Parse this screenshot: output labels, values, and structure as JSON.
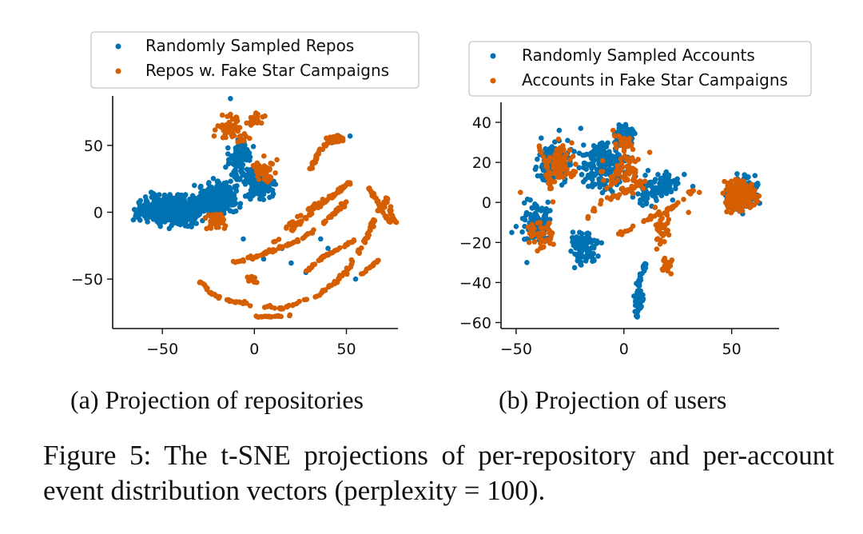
{
  "colors": {
    "random": "#0072b2",
    "fake": "#d55e00"
  },
  "figure_caption": "Figure 5: The t-SNE projections of per-repository and per-account event distribution vectors (perplexity = 100).",
  "chart_data": [
    {
      "type": "scatter",
      "title": "",
      "subcaption": "(a) Projection of repositories",
      "xlabel": "",
      "ylabel": "",
      "xlim": [
        -77,
        78
      ],
      "ylim": [
        -87,
        87
      ],
      "xticks": [
        -50,
        0,
        50
      ],
      "yticks": [
        -50,
        0,
        50
      ],
      "grid": false,
      "legend": {
        "placement": "top",
        "entries": [
          "Randomly Sampled Repos",
          "Repos w. Fake Star Campaigns"
        ]
      },
      "series": [
        {
          "name": "Randomly Sampled Repos",
          "color": "#0072b2",
          "clusters": [
            {
              "cx": -45,
              "cy": 2,
              "rx": 22,
              "ry": 15,
              "n": 460
            },
            {
              "cx": -20,
              "cy": 10,
              "rx": 15,
              "ry": 18,
              "n": 240
            },
            {
              "cx": -8,
              "cy": 40,
              "rx": 9,
              "ry": 24,
              "n": 110
            },
            {
              "cx": 3,
              "cy": 20,
              "rx": 12,
              "ry": 16,
              "n": 120
            },
            {
              "cx": -58,
              "cy": 0,
              "rx": 10,
              "ry": 8,
              "n": 70
            },
            {
              "cx": 45,
              "cy": 55,
              "rx": 5,
              "ry": 3,
              "n": 10
            }
          ],
          "points": [
            [
              -13,
              85
            ],
            [
              -63,
              2
            ],
            [
              42,
              52
            ],
            [
              52,
              57
            ],
            [
              20,
              -38
            ],
            [
              36,
              -20
            ],
            [
              28,
              -45
            ],
            [
              15,
              -27
            ],
            [
              55,
              -50
            ],
            [
              40,
              -27
            ],
            [
              -6,
              -20
            ],
            [
              5,
              -35
            ]
          ]
        },
        {
          "name": "Repos w. Fake Star Campaigns",
          "color": "#d55e00",
          "clusters": [
            {
              "cx": -12,
              "cy": 62,
              "rx": 13,
              "ry": 15,
              "n": 60
            },
            {
              "cx": 1,
              "cy": 70,
              "rx": 6,
              "ry": 6,
              "n": 25
            },
            {
              "cx": 43,
              "cy": 55,
              "rx": 6,
              "ry": 4,
              "n": 70
            },
            {
              "cx": -20,
              "cy": -7,
              "rx": 8,
              "ry": 10,
              "n": 50
            },
            {
              "cx": 5,
              "cy": 30,
              "rx": 10,
              "ry": 15,
              "n": 45
            },
            {
              "cx": -2,
              "cy": -50,
              "rx": 5,
              "ry": 4,
              "n": 12
            }
          ],
          "curves": [
            {
              "pts": [
                [
                  30,
                  32
                ],
                [
                  33,
                  38
                ],
                [
                  36,
                  47
                ],
                [
                  40,
                  52
                ],
                [
                  48,
                  56
                ]
              ],
              "n": 45,
              "jitter": 1.2
            },
            {
              "pts": [
                [
                  20,
                  -13
                ],
                [
                  36,
                  5
                ],
                [
                  52,
                  22
                ]
              ],
              "n": 60,
              "jitter": 1.3
            },
            {
              "pts": [
                [
                  -12,
                  -38
                ],
                [
                  6,
                  -31
                ],
                [
                  26,
                  -20
                ],
                [
                  42,
                  -3
                ],
                [
                  50,
                  8
                ]
              ],
              "n": 90,
              "jitter": 1.6
            },
            {
              "pts": [
                [
                  6,
                  -31
                ],
                [
                  16,
                  -15
                ],
                [
                  26,
                  0
                ],
                [
                  42,
                  12
                ],
                [
                  52,
                  23
                ]
              ],
              "n": 45,
              "jitter": 1.5
            },
            {
              "pts": [
                [
                  28,
                  -44
                ],
                [
                  36,
                  -35
                ],
                [
                  46,
                  -27
                ],
                [
                  54,
                  -21
                ]
              ],
              "n": 40,
              "jitter": 1.3
            },
            {
              "pts": [
                [
                  -30,
                  -52
                ],
                [
                  -20,
                  -64
                ],
                [
                  -5,
                  -68
                ],
                [
                  15,
                  -72
                ],
                [
                  35,
                  -62
                ],
                [
                  50,
                  -45
                ],
                [
                  60,
                  -22
                ],
                [
                  67,
                  0
                ],
                [
                  72,
                  10
                ],
                [
                  77,
                  -12
                ]
              ],
              "n": 170,
              "jitter": 1.6
            },
            {
              "pts": [
                [
                  62,
                  18
                ],
                [
                  66,
                  10
                ],
                [
                  70,
                  0
                ],
                [
                  74,
                  -8
                ]
              ],
              "n": 40,
              "jitter": 1.2
            },
            {
              "pts": [
                [
                  0,
                  -78
                ],
                [
                  10,
                  -78
                ],
                [
                  20,
                  -77
                ]
              ],
              "n": 20,
              "jitter": 0.8
            },
            {
              "pts": [
                [
                  57,
                  -48
                ],
                [
                  62,
                  -42
                ],
                [
                  68,
                  -35
                ]
              ],
              "n": 14,
              "jitter": 0.9
            }
          ]
        }
      ]
    },
    {
      "type": "scatter",
      "title": "",
      "subcaption": "(b) Projection of users",
      "xlabel": "",
      "ylabel": "",
      "xlim": [
        -57,
        72
      ],
      "ylim": [
        -63,
        50
      ],
      "xticks": [
        -50,
        0,
        50
      ],
      "yticks": [
        -60,
        -40,
        -20,
        0,
        20,
        40
      ],
      "grid": false,
      "legend": {
        "placement": "top",
        "entries": [
          "Randomly Sampled Accounts",
          "Accounts in Fake Star Campaigns"
        ]
      },
      "series": [
        {
          "name": "Randomly Sampled Accounts",
          "color": "#0072b2",
          "clusters": [
            {
              "cx": -32,
              "cy": 20,
              "rx": 12,
              "ry": 14,
              "n": 150
            },
            {
              "cx": -10,
              "cy": 18,
              "rx": 14,
              "ry": 18,
              "n": 170
            },
            {
              "cx": 0,
              "cy": 34,
              "rx": 7,
              "ry": 7,
              "n": 55
            },
            {
              "cx": -40,
              "cy": -10,
              "rx": 10,
              "ry": 14,
              "n": 90
            },
            {
              "cx": -18,
              "cy": -22,
              "rx": 10,
              "ry": 13,
              "n": 90
            },
            {
              "cx": 12,
              "cy": 6,
              "rx": 12,
              "ry": 12,
              "n": 70
            },
            {
              "cx": 20,
              "cy": 10,
              "rx": 8,
              "ry": 8,
              "n": 40
            },
            {
              "cx": 55,
              "cy": 5,
              "rx": 11,
              "ry": 12,
              "n": 110
            },
            {
              "cx": 7,
              "cy": -48,
              "rx": 3,
              "ry": 8,
              "n": 40
            }
          ],
          "curves": [
            {
              "pts": [
                [
                  10,
                  -30
                ],
                [
                  7,
                  -40
                ],
                [
                  6,
                  -50
                ],
                [
                  6,
                  -58
                ]
              ],
              "n": 45,
              "jitter": 1.4
            }
          ],
          "points": [
            [
              -50,
              -12
            ],
            [
              -52,
              -15
            ],
            [
              -47,
              -8
            ],
            [
              -45,
              -30
            ],
            [
              28,
              14
            ],
            [
              32,
              8
            ],
            [
              -30,
              36
            ],
            [
              -20,
              37
            ]
          ]
        },
        {
          "name": "Accounts in Fake Star Campaigns",
          "color": "#d55e00",
          "clusters": [
            {
              "cx": 54,
              "cy": 3,
              "rx": 10,
              "ry": 10,
              "n": 300
            },
            {
              "cx": -30,
              "cy": 20,
              "rx": 10,
              "ry": 14,
              "n": 70
            },
            {
              "cx": -38,
              "cy": -15,
              "rx": 8,
              "ry": 12,
              "n": 40
            },
            {
              "cx": 0,
              "cy": 15,
              "rx": 14,
              "ry": 14,
              "n": 70
            },
            {
              "cx": 17,
              "cy": -12,
              "rx": 6,
              "ry": 14,
              "n": 35
            },
            {
              "cx": 0,
              "cy": 30,
              "rx": 6,
              "ry": 6,
              "n": 25
            },
            {
              "cx": 20,
              "cy": -32,
              "rx": 4,
              "ry": 6,
              "n": 20
            }
          ],
          "curves": [
            {
              "pts": [
                [
                  -2,
                  -16
                ],
                [
                  10,
                  -9
                ],
                [
                  20,
                  -4
                ],
                [
                  28,
                  2
                ],
                [
                  32,
                  6
                ]
              ],
              "n": 35,
              "jitter": 1.2
            },
            {
              "pts": [
                [
                  -20,
                  -10
                ],
                [
                  -10,
                  0
                ],
                [
                  0,
                  5
                ],
                [
                  10,
                  10
                ]
              ],
              "n": 30,
              "jitter": 1.6
            },
            {
              "pts": [
                [
                  -40,
                  30
                ],
                [
                  -36,
                  20
                ],
                [
                  -34,
                  10
                ],
                [
                  -33,
                  0
                ]
              ],
              "n": 25,
              "jitter": 1.4
            }
          ],
          "points": [
            [
              35,
              5
            ],
            [
              30,
              -5
            ],
            [
              -48,
              5
            ],
            [
              -44,
              -20
            ],
            [
              -5,
              36
            ],
            [
              12,
              25
            ]
          ]
        }
      ]
    }
  ]
}
